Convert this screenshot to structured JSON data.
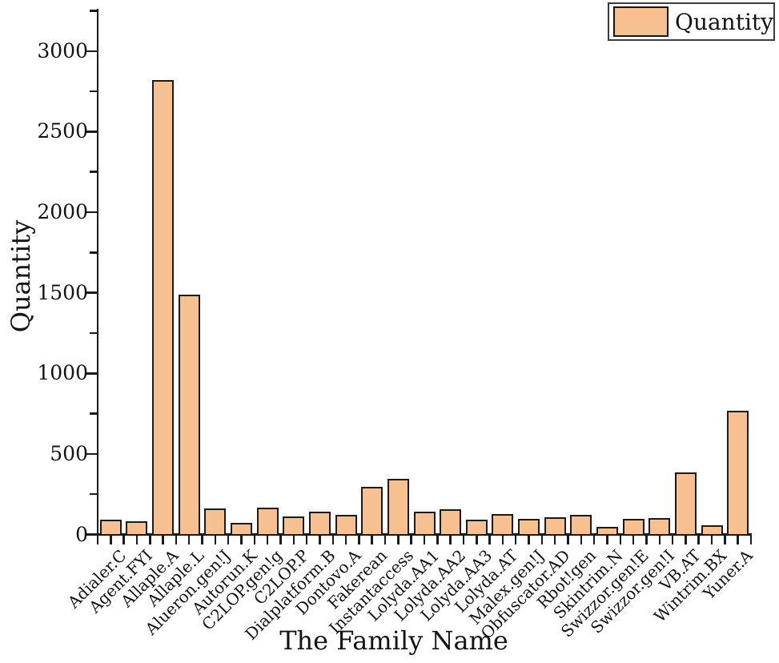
{
  "figure": {
    "background": "#ffffff"
  },
  "legend": {
    "label": "Quantity"
  },
  "colors": {
    "bar_fill": "#F6C090",
    "bar_border": "#1b1b1b",
    "axis": "#1b1b1b",
    "text": "#141414",
    "legend_border": "#3d3d3d"
  },
  "chart_data": {
    "type": "bar",
    "title": "",
    "xlabel": "The Family Name",
    "ylabel": "Quantity",
    "legend_position": "top-right",
    "grid": false,
    "ylim": [
      0,
      3250
    ],
    "yticks_major": [
      0,
      500,
      1000,
      1500,
      2000,
      2500,
      3000
    ],
    "yticks_minor_step": 250,
    "series_name": "Quantity",
    "categories": [
      "Adialer.C",
      "Agent.FYI",
      "Allaple.A",
      "Allaple.L",
      "Alueron.gen!J",
      "Autorun.K",
      "C2LOP.gen!g",
      "C2LOP.P",
      "Dialplatform.B",
      "Dontovo.A",
      "Fakerean",
      "Instantaccess",
      "Lolyda.AA1",
      "Lolyda.AA2",
      "Lolyda.AA3",
      "Lolyda.AT",
      "Malex.gen!J",
      "Obfuscator.AD",
      "Rbot!gen",
      "Skintrim.N",
      "Swizzor.gen!E",
      "Swizzor.gen!I",
      "VB.AT",
      "Wintrim.BX",
      "Yuner.A"
    ],
    "values": [
      90,
      84,
      2822,
      1488,
      162,
      72,
      168,
      110,
      140,
      124,
      297,
      346,
      144,
      156,
      92,
      126,
      98,
      108,
      124,
      48,
      97,
      100,
      383,
      58,
      768
    ]
  }
}
